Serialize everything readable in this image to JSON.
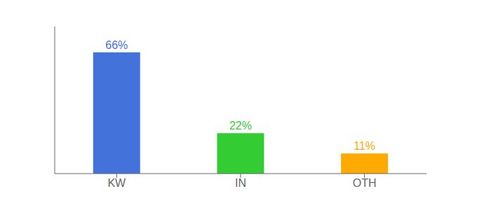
{
  "chart_data": {
    "type": "bar",
    "categories": [
      "KW",
      "IN",
      "OTH"
    ],
    "values": [
      66,
      22,
      11
    ],
    "value_labels": [
      "66%",
      "22%",
      "11%"
    ],
    "colors": [
      "#4472db",
      "#33cc33",
      "#ffaa00"
    ],
    "ylim": [
      0,
      80
    ],
    "grid": false,
    "data_labels": true,
    "tick_labels": "x"
  }
}
